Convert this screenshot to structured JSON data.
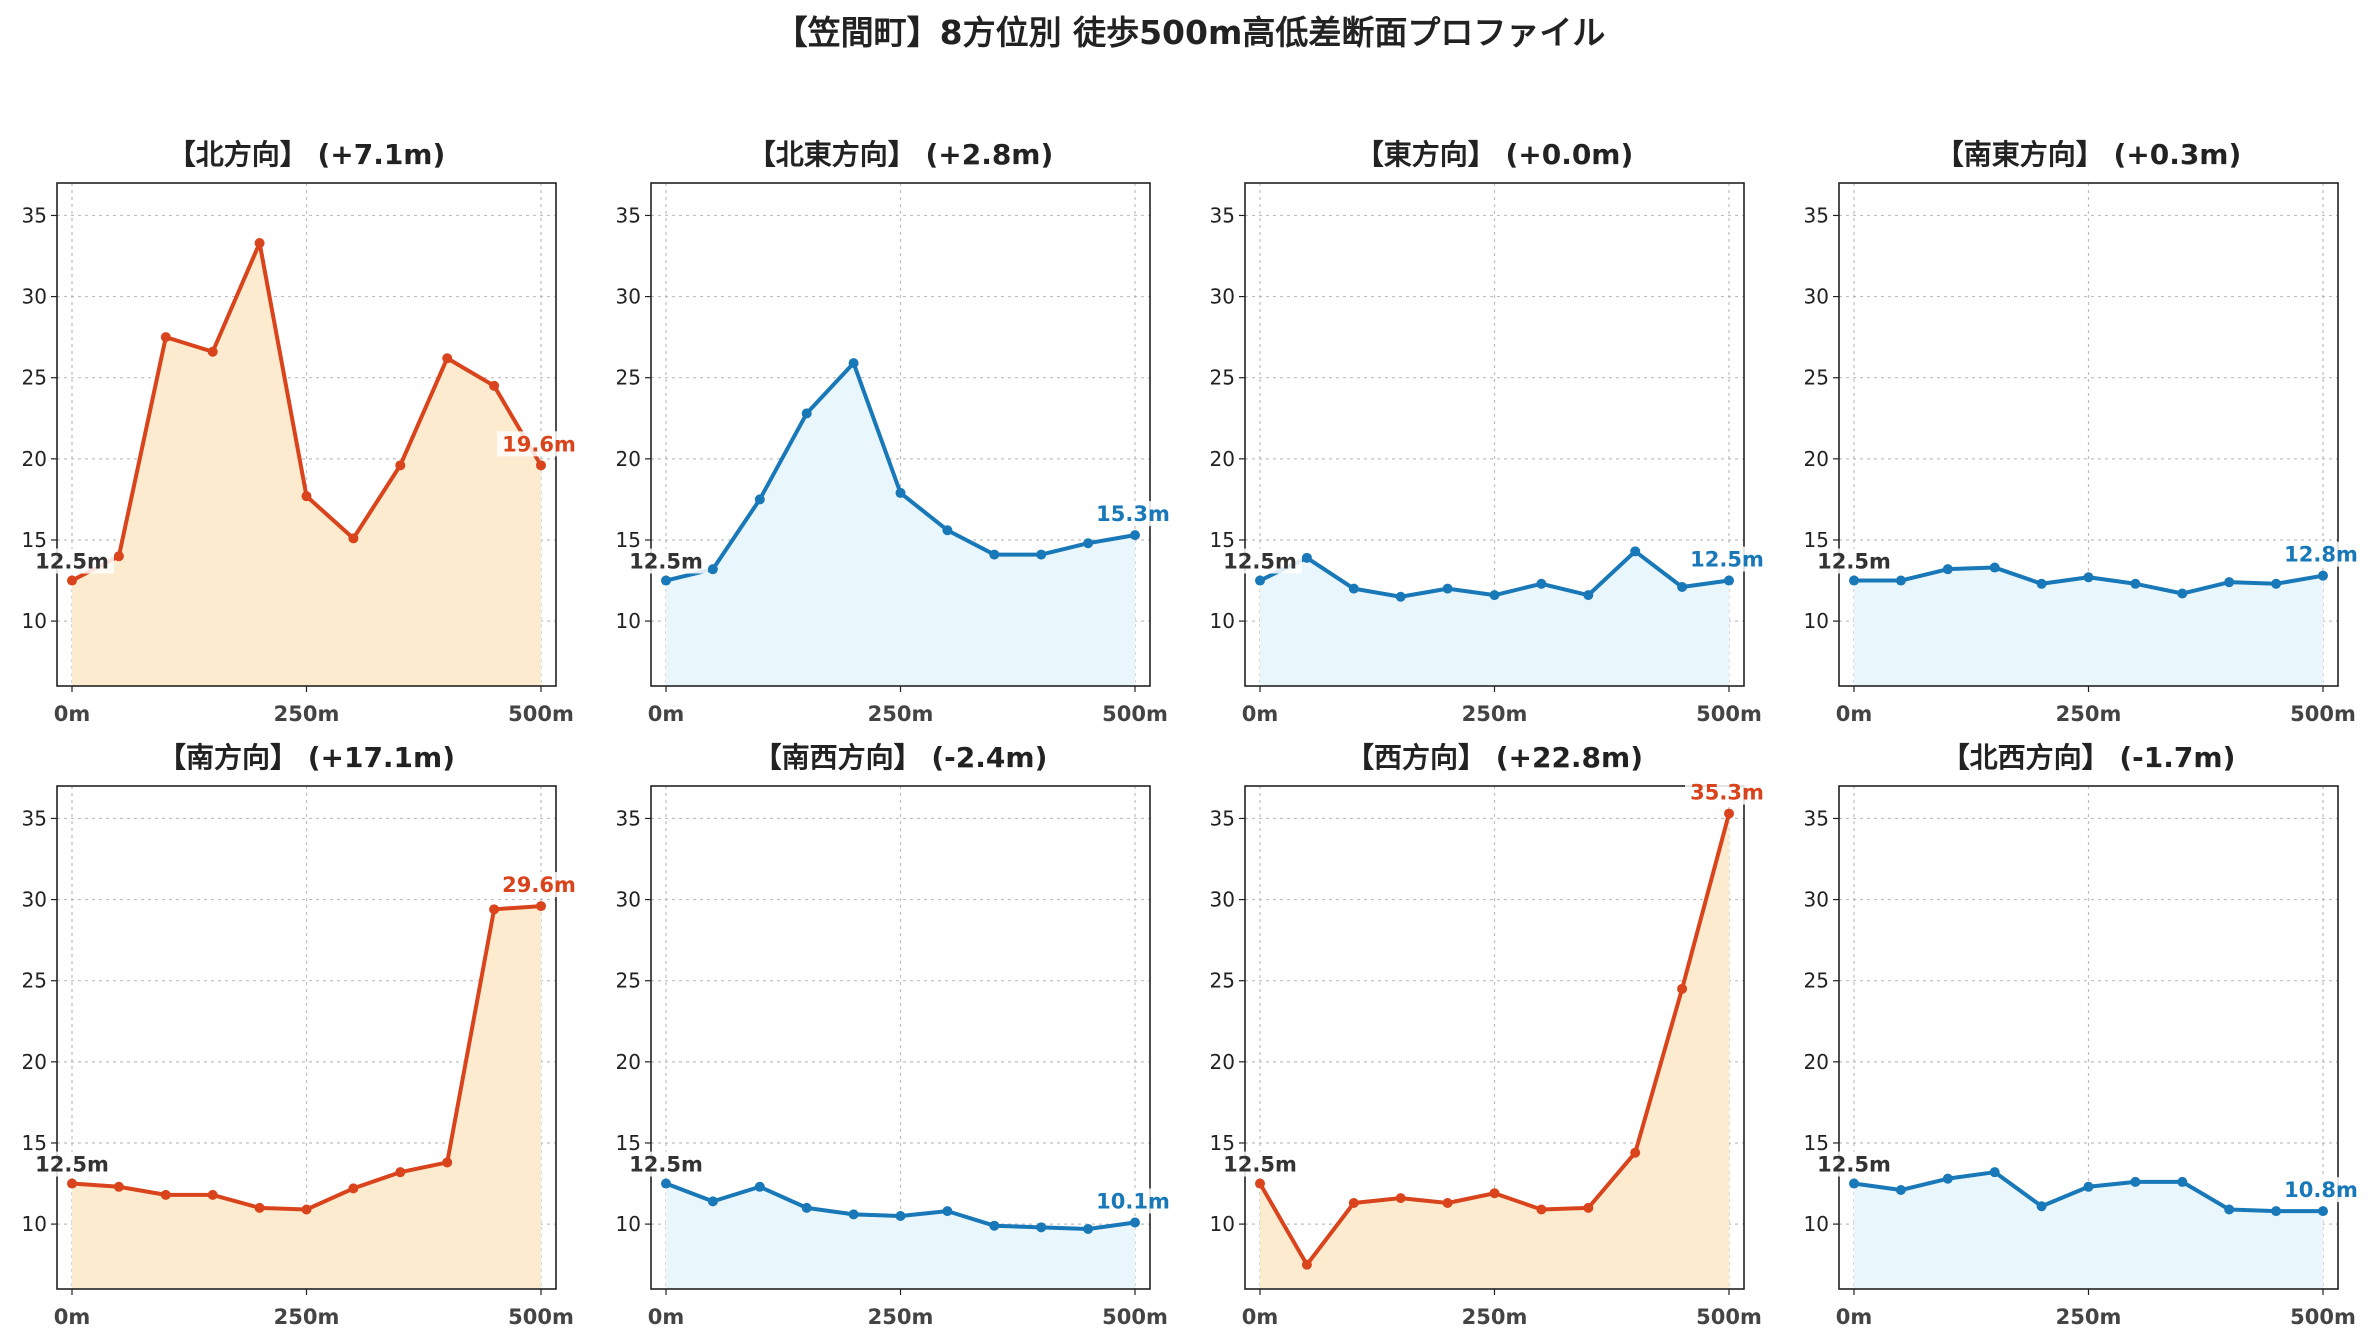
{
  "title": "【笠間町】8方位別 徒歩500m高低差断面プロファイル",
  "colors": {
    "up_line": "#d9441c",
    "up_fill": "#fdebcf",
    "down_line": "#1878b8",
    "down_fill": "#e9f6fc",
    "start_label": "#333333"
  },
  "chart_data": [
    {
      "type": "area",
      "title": "【北方向】 (+7.1m)",
      "trend": "up",
      "x": [
        0,
        50,
        100,
        150,
        200,
        250,
        300,
        350,
        400,
        450,
        500
      ],
      "y": [
        12.5,
        14.0,
        27.5,
        26.6,
        33.3,
        17.7,
        15.1,
        19.6,
        26.2,
        24.5,
        19.6
      ],
      "start_label": "12.5m",
      "end_label": "19.6m",
      "xticks": [
        "0m",
        "250m",
        "500m"
      ],
      "xlim": [
        0,
        500
      ],
      "ylim": [
        6,
        37
      ],
      "yticks": [
        10,
        15,
        20,
        25,
        30,
        35
      ],
      "grid": true
    },
    {
      "type": "area",
      "title": "【北東方向】 (+2.8m)",
      "trend": "down",
      "x": [
        0,
        50,
        100,
        150,
        200,
        250,
        300,
        350,
        400,
        450,
        500
      ],
      "y": [
        12.5,
        13.2,
        17.5,
        22.8,
        25.9,
        17.9,
        15.6,
        14.1,
        14.1,
        14.8,
        15.3
      ],
      "start_label": "12.5m",
      "end_label": "15.3m",
      "xticks": [
        "0m",
        "250m",
        "500m"
      ],
      "xlim": [
        0,
        500
      ],
      "ylim": [
        6,
        37
      ],
      "yticks": [
        10,
        15,
        20,
        25,
        30,
        35
      ],
      "grid": true
    },
    {
      "type": "area",
      "title": "【東方向】 (+0.0m)",
      "trend": "down",
      "x": [
        0,
        50,
        100,
        150,
        200,
        250,
        300,
        350,
        400,
        450,
        500
      ],
      "y": [
        12.5,
        13.9,
        12.0,
        11.5,
        12.0,
        11.6,
        12.3,
        11.6,
        14.3,
        12.1,
        12.5
      ],
      "start_label": "12.5m",
      "end_label": "12.5m",
      "xticks": [
        "0m",
        "250m",
        "500m"
      ],
      "xlim": [
        0,
        500
      ],
      "ylim": [
        6,
        37
      ],
      "yticks": [
        10,
        15,
        20,
        25,
        30,
        35
      ],
      "grid": true
    },
    {
      "type": "area",
      "title": "【南東方向】 (+0.3m)",
      "trend": "down",
      "x": [
        0,
        50,
        100,
        150,
        200,
        250,
        300,
        350,
        400,
        450,
        500
      ],
      "y": [
        12.5,
        12.5,
        13.2,
        13.3,
        12.3,
        12.7,
        12.3,
        11.7,
        12.4,
        12.3,
        12.8
      ],
      "start_label": "12.5m",
      "end_label": "12.8m",
      "xticks": [
        "0m",
        "250m",
        "500m"
      ],
      "xlim": [
        0,
        500
      ],
      "ylim": [
        6,
        37
      ],
      "yticks": [
        10,
        15,
        20,
        25,
        30,
        35
      ],
      "grid": true
    },
    {
      "type": "area",
      "title": "【南方向】 (+17.1m)",
      "trend": "up",
      "x": [
        0,
        50,
        100,
        150,
        200,
        250,
        300,
        350,
        400,
        450,
        500
      ],
      "y": [
        12.5,
        12.3,
        11.8,
        11.8,
        11.0,
        10.9,
        12.2,
        13.2,
        13.8,
        29.4,
        29.6
      ],
      "start_label": "12.5m",
      "end_label": "29.6m",
      "xticks": [
        "0m",
        "250m",
        "500m"
      ],
      "xlim": [
        0,
        500
      ],
      "ylim": [
        6,
        37
      ],
      "yticks": [
        10,
        15,
        20,
        25,
        30,
        35
      ],
      "grid": true
    },
    {
      "type": "area",
      "title": "【南西方向】 (-2.4m)",
      "trend": "down",
      "x": [
        0,
        50,
        100,
        150,
        200,
        250,
        300,
        350,
        400,
        450,
        500
      ],
      "y": [
        12.5,
        11.4,
        12.3,
        11.0,
        10.6,
        10.5,
        10.8,
        9.9,
        9.8,
        9.7,
        10.1
      ],
      "start_label": "12.5m",
      "end_label": "10.1m",
      "xticks": [
        "0m",
        "250m",
        "500m"
      ],
      "xlim": [
        0,
        500
      ],
      "ylim": [
        6,
        37
      ],
      "yticks": [
        10,
        15,
        20,
        25,
        30,
        35
      ],
      "grid": true
    },
    {
      "type": "area",
      "title": "【西方向】 (+22.8m)",
      "trend": "up",
      "x": [
        0,
        50,
        100,
        150,
        200,
        250,
        300,
        350,
        400,
        450,
        500
      ],
      "y": [
        12.5,
        7.5,
        11.3,
        11.6,
        11.3,
        11.9,
        10.9,
        11.0,
        14.4,
        24.5,
        35.3
      ],
      "start_label": "12.5m",
      "end_label": "35.3m",
      "xticks": [
        "0m",
        "250m",
        "500m"
      ],
      "xlim": [
        0,
        500
      ],
      "ylim": [
        6,
        37
      ],
      "yticks": [
        10,
        15,
        20,
        25,
        30,
        35
      ],
      "grid": true
    },
    {
      "type": "area",
      "title": "【北西方向】 (-1.7m)",
      "trend": "down",
      "x": [
        0,
        50,
        100,
        150,
        200,
        250,
        300,
        350,
        400,
        450,
        500
      ],
      "y": [
        12.5,
        12.1,
        12.8,
        13.2,
        11.1,
        12.3,
        12.6,
        12.6,
        10.9,
        10.8,
        10.8
      ],
      "start_label": "12.5m",
      "end_label": "10.8m",
      "xticks": [
        "0m",
        "250m",
        "500m"
      ],
      "xlim": [
        0,
        500
      ],
      "ylim": [
        6,
        37
      ],
      "yticks": [
        10,
        15,
        20,
        25,
        30,
        35
      ],
      "grid": true
    }
  ]
}
